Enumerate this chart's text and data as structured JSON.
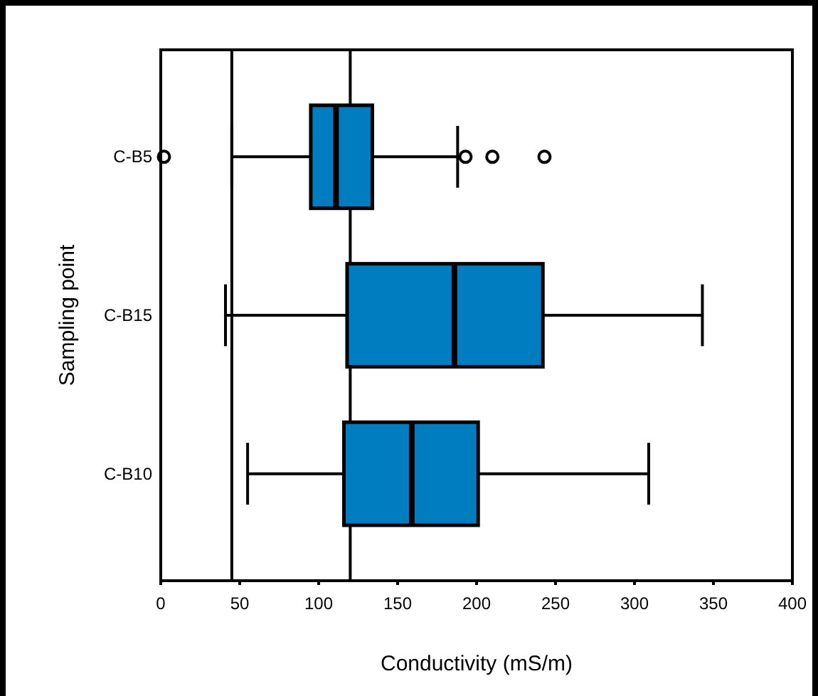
{
  "chart_data": {
    "type": "box",
    "orientation": "horizontal",
    "xlabel": "Conductivity (mS/m)",
    "ylabel": "Sampling point",
    "categories": [
      "C-B5",
      "C-B15",
      "C-B10"
    ],
    "color": "#007dc0",
    "boxes": [
      {
        "low": 45,
        "q1": 95,
        "median": 111,
        "q3": 134,
        "high": 188,
        "outliers": [
          2,
          193,
          210,
          243
        ]
      },
      {
        "low": 41,
        "q1": 118,
        "median": 186,
        "q3": 242,
        "high": 343
      },
      {
        "low": 55,
        "q1": 116,
        "median": 159,
        "q3": 201,
        "high": 309
      }
    ],
    "xlim": [
      0,
      400
    ],
    "xticks": [
      0,
      50,
      100,
      150,
      200,
      250,
      300,
      350,
      400
    ],
    "ref_lines": [
      {
        "axis": "x",
        "value": 45
      },
      {
        "axis": "x",
        "value": 120
      }
    ],
    "grid": false
  }
}
